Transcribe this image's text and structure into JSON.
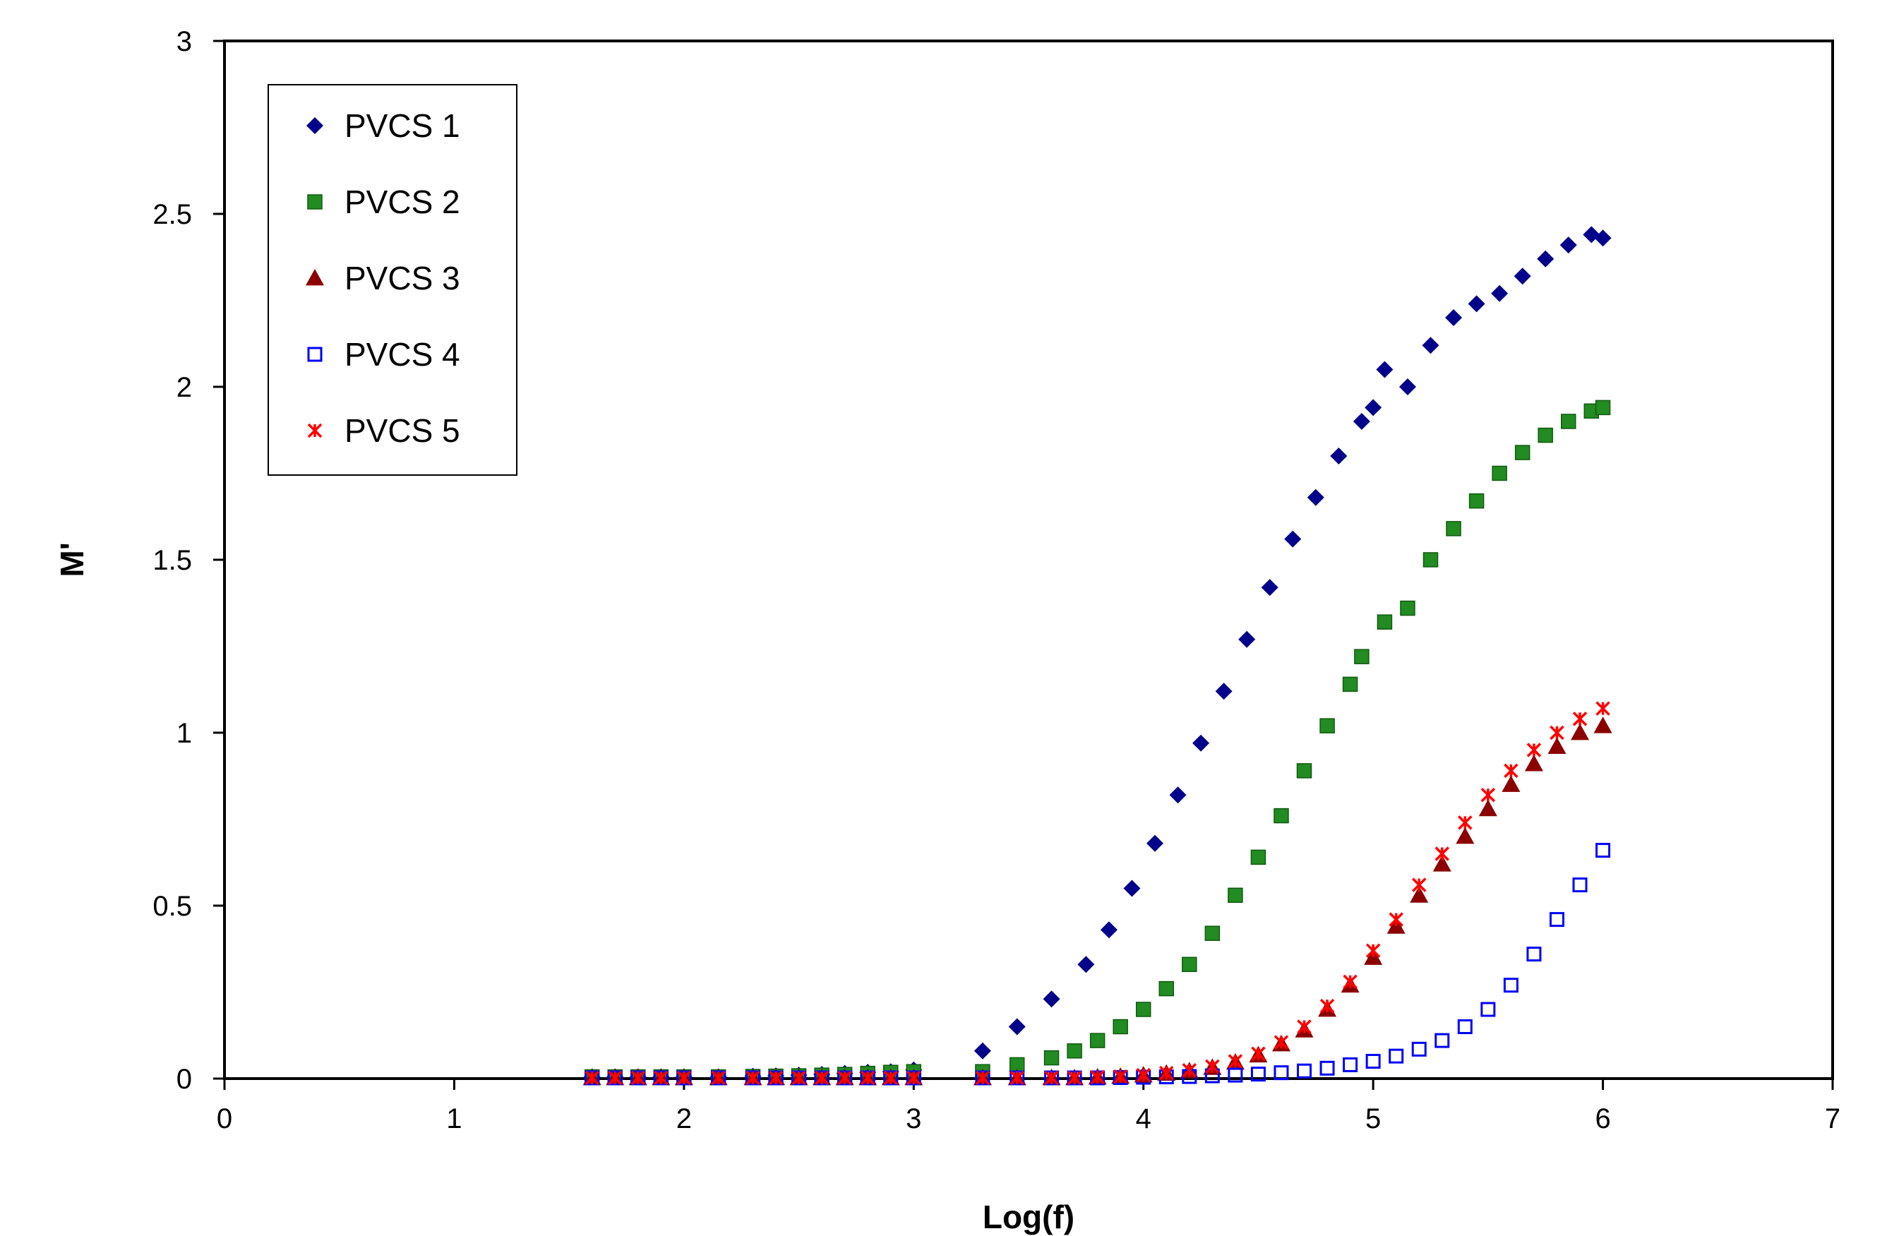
{
  "chart_data": {
    "type": "scatter",
    "title": "",
    "xlabel": "Log(f)",
    "ylabel": "M'",
    "xlim": [
      0,
      7
    ],
    "ylim": [
      0,
      3
    ],
    "xticks": [
      "0",
      "1",
      "2",
      "3",
      "4",
      "5",
      "6",
      "7"
    ],
    "yticks": [
      "0",
      "0.5",
      "1",
      "1.5",
      "2",
      "2.5",
      "3"
    ],
    "grid": false,
    "legend": "top-left",
    "series": [
      {
        "name": "PVCS 1",
        "marker": "diamond",
        "color": "#00008B",
        "x": [
          1.6,
          1.7,
          1.8,
          1.9,
          2.0,
          2.15,
          2.3,
          2.4,
          2.5,
          2.6,
          2.7,
          2.8,
          2.9,
          3.0,
          3.3,
          3.45,
          3.6,
          3.75,
          3.85,
          3.95,
          4.05,
          4.15,
          4.25,
          4.35,
          4.45,
          4.55,
          4.65,
          4.75,
          4.85,
          4.95,
          5.0,
          5.05,
          5.15,
          5.25,
          5.35,
          5.45,
          5.55,
          5.65,
          5.75,
          5.85,
          5.95,
          6.0
        ],
        "y": [
          0.005,
          0.005,
          0.005,
          0.005,
          0.005,
          0.005,
          0.007,
          0.008,
          0.01,
          0.012,
          0.015,
          0.018,
          0.02,
          0.025,
          0.08,
          0.15,
          0.23,
          0.33,
          0.43,
          0.55,
          0.68,
          0.82,
          0.97,
          1.12,
          1.27,
          1.42,
          1.56,
          1.68,
          1.8,
          1.9,
          1.94,
          2.05,
          2.0,
          2.12,
          2.2,
          2.24,
          2.27,
          2.32,
          2.37,
          2.41,
          2.44,
          2.43
        ]
      },
      {
        "name": "PVCS 2",
        "marker": "square",
        "color": "#228B22",
        "x": [
          1.6,
          1.7,
          1.8,
          1.9,
          2.0,
          2.15,
          2.3,
          2.4,
          2.5,
          2.6,
          2.7,
          2.8,
          2.9,
          3.0,
          3.3,
          3.45,
          3.6,
          3.7,
          3.8,
          3.9,
          4.0,
          4.1,
          4.2,
          4.3,
          4.4,
          4.5,
          4.6,
          4.7,
          4.8,
          4.9,
          4.95,
          5.05,
          5.15,
          5.25,
          5.35,
          5.45,
          5.55,
          5.65,
          5.75,
          5.85,
          5.95,
          6.0
        ],
        "y": [
          0.005,
          0.005,
          0.005,
          0.005,
          0.005,
          0.005,
          0.006,
          0.007,
          0.008,
          0.01,
          0.012,
          0.015,
          0.018,
          0.02,
          0.02,
          0.04,
          0.06,
          0.08,
          0.11,
          0.15,
          0.2,
          0.26,
          0.33,
          0.42,
          0.53,
          0.64,
          0.76,
          0.89,
          1.02,
          1.14,
          1.22,
          1.32,
          1.36,
          1.5,
          1.59,
          1.67,
          1.75,
          1.81,
          1.86,
          1.9,
          1.93,
          1.94
        ]
      },
      {
        "name": "PVCS 3",
        "marker": "triangle",
        "color": "#8B0000",
        "x": [
          1.6,
          1.7,
          1.8,
          1.9,
          2.0,
          2.15,
          2.3,
          2.4,
          2.5,
          2.6,
          2.7,
          2.8,
          2.9,
          3.0,
          3.3,
          3.45,
          3.6,
          3.7,
          3.8,
          3.9,
          4.0,
          4.1,
          4.2,
          4.3,
          4.4,
          4.5,
          4.6,
          4.7,
          4.8,
          4.9,
          5.0,
          5.1,
          5.2,
          5.3,
          5.4,
          5.5,
          5.6,
          5.7,
          5.8,
          5.9,
          6.0
        ],
        "y": [
          0.002,
          0.002,
          0.002,
          0.002,
          0.002,
          0.002,
          0.002,
          0.002,
          0.002,
          0.002,
          0.002,
          0.002,
          0.002,
          0.002,
          0.002,
          0.002,
          0.002,
          0.002,
          0.004,
          0.006,
          0.01,
          0.015,
          0.022,
          0.032,
          0.047,
          0.068,
          0.1,
          0.14,
          0.2,
          0.27,
          0.35,
          0.44,
          0.53,
          0.62,
          0.7,
          0.78,
          0.85,
          0.91,
          0.96,
          1.0,
          1.02
        ]
      },
      {
        "name": "PVCS 4",
        "marker": "square-open",
        "color": "#0000FF",
        "x": [
          1.6,
          1.7,
          1.8,
          1.9,
          2.0,
          2.15,
          2.3,
          2.4,
          2.5,
          2.6,
          2.7,
          2.8,
          2.9,
          3.0,
          3.3,
          3.45,
          3.6,
          3.7,
          3.8,
          3.9,
          4.0,
          4.1,
          4.2,
          4.3,
          4.4,
          4.5,
          4.6,
          4.7,
          4.8,
          4.9,
          5.0,
          5.1,
          5.2,
          5.3,
          5.4,
          5.5,
          5.6,
          5.7,
          5.8,
          5.9,
          6.0
        ],
        "y": [
          0.002,
          0.002,
          0.002,
          0.002,
          0.002,
          0.002,
          0.002,
          0.002,
          0.002,
          0.002,
          0.002,
          0.002,
          0.002,
          0.002,
          0.002,
          0.002,
          0.002,
          0.002,
          0.002,
          0.003,
          0.004,
          0.005,
          0.006,
          0.008,
          0.01,
          0.013,
          0.017,
          0.022,
          0.03,
          0.04,
          0.05,
          0.065,
          0.085,
          0.11,
          0.15,
          0.2,
          0.27,
          0.36,
          0.46,
          0.56,
          0.66
        ]
      },
      {
        "name": "PVCS 5",
        "marker": "star",
        "color": "#FF0000",
        "x": [
          1.6,
          1.7,
          1.8,
          1.9,
          2.0,
          2.15,
          2.3,
          2.4,
          2.5,
          2.6,
          2.7,
          2.8,
          2.9,
          3.0,
          3.3,
          3.45,
          3.6,
          3.7,
          3.8,
          3.9,
          4.0,
          4.1,
          4.2,
          4.3,
          4.4,
          4.5,
          4.6,
          4.7,
          4.8,
          4.9,
          5.0,
          5.1,
          5.2,
          5.3,
          5.4,
          5.5,
          5.6,
          5.7,
          5.8,
          5.9,
          6.0
        ],
        "y": [
          0.002,
          0.002,
          0.002,
          0.002,
          0.002,
          0.002,
          0.002,
          0.002,
          0.002,
          0.002,
          0.002,
          0.002,
          0.002,
          0.002,
          0.002,
          0.002,
          0.002,
          0.002,
          0.004,
          0.006,
          0.01,
          0.016,
          0.024,
          0.035,
          0.05,
          0.072,
          0.105,
          0.15,
          0.21,
          0.28,
          0.37,
          0.46,
          0.56,
          0.65,
          0.74,
          0.82,
          0.89,
          0.95,
          1.0,
          1.04,
          1.07
        ]
      }
    ]
  }
}
